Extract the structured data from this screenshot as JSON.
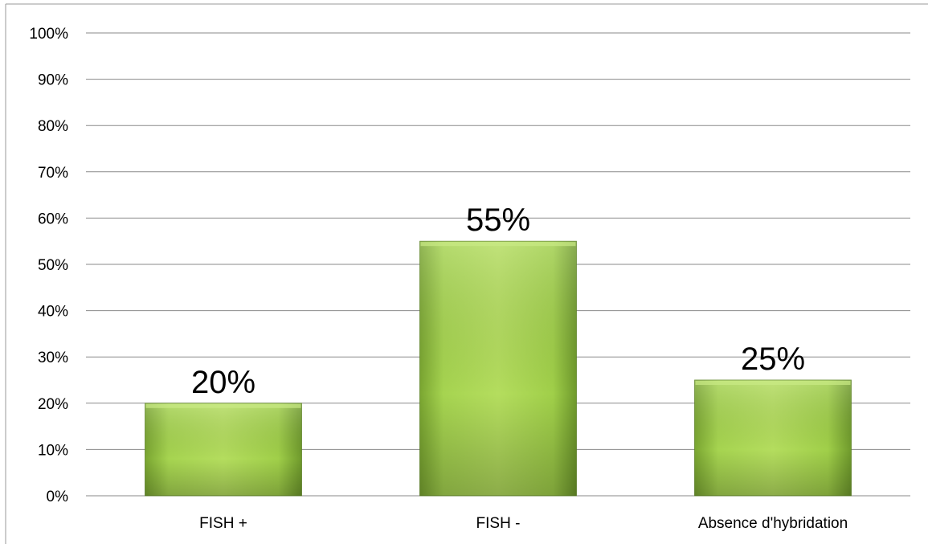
{
  "chart_data": {
    "type": "bar",
    "categories": [
      "FISH +",
      "FISH -",
      "Absence d'hybridation"
    ],
    "values": [
      20,
      55,
      25
    ],
    "data_labels": [
      "20%",
      "55%",
      "25%"
    ],
    "title": "",
    "xlabel": "",
    "ylabel": "",
    "ylim": [
      0,
      100
    ],
    "yticks": [
      "0%",
      "10%",
      "20%",
      "30%",
      "40%",
      "50%",
      "60%",
      "70%",
      "80%",
      "90%",
      "100%"
    ],
    "grid": true,
    "legend": "none",
    "colors": {
      "bar_light": "#b4dd5e",
      "bar_mid": "#9acb44",
      "bar_dark": "#6f9a2c",
      "grid": "#8a8a8a",
      "border": "#9a9a9a",
      "text": "#000000"
    }
  }
}
